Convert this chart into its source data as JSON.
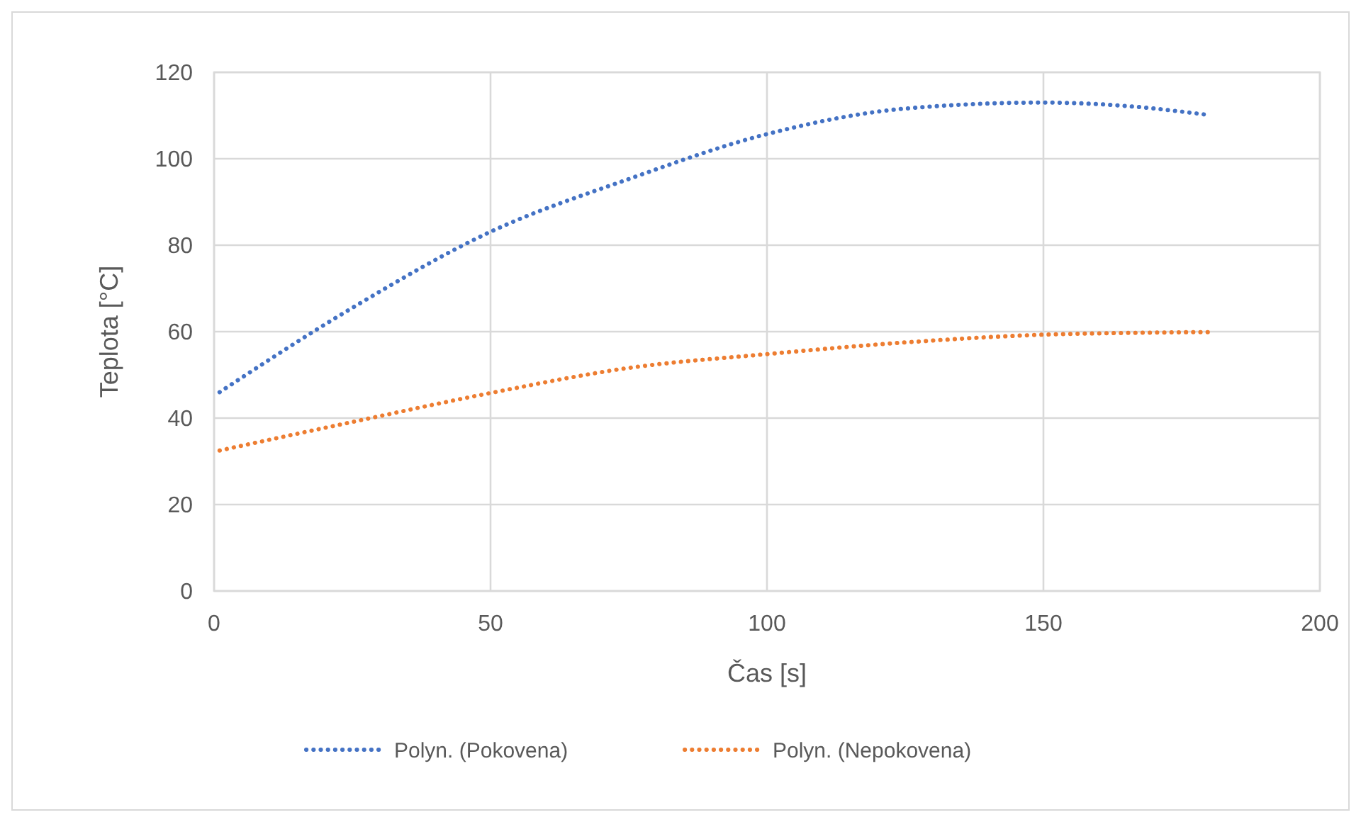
{
  "chart_data": {
    "type": "line",
    "xlabel": "Čas [s]",
    "ylabel": "Teplota [°C]",
    "xlim": [
      0,
      200
    ],
    "xticks": [
      0,
      50,
      100,
      150,
      200
    ],
    "ylim": [
      0,
      120
    ],
    "yticks": [
      0,
      20,
      40,
      60,
      80,
      100,
      120
    ],
    "grid": true,
    "legend": "bottom",
    "marker": "none",
    "line_style": "dotted",
    "series": [
      {
        "name": "Polyn. (Pokovena)",
        "color": "#4472c4",
        "x": [
          1,
          25,
          50,
          75,
          100,
          125,
          150,
          165,
          180
        ],
        "values": [
          46,
          65.5,
          83.1,
          95.3,
          105.7,
          111.6,
          113,
          112.2,
          110.1
        ]
      },
      {
        "name": "Polyn. (Nepokovena)",
        "color": "#ed7d31",
        "x": [
          1,
          25,
          50,
          75,
          100,
          125,
          150,
          165,
          180
        ],
        "values": [
          32.5,
          39.1,
          45.8,
          51.6,
          54.8,
          57.5,
          59.3,
          59.7,
          59.9
        ]
      }
    ]
  }
}
